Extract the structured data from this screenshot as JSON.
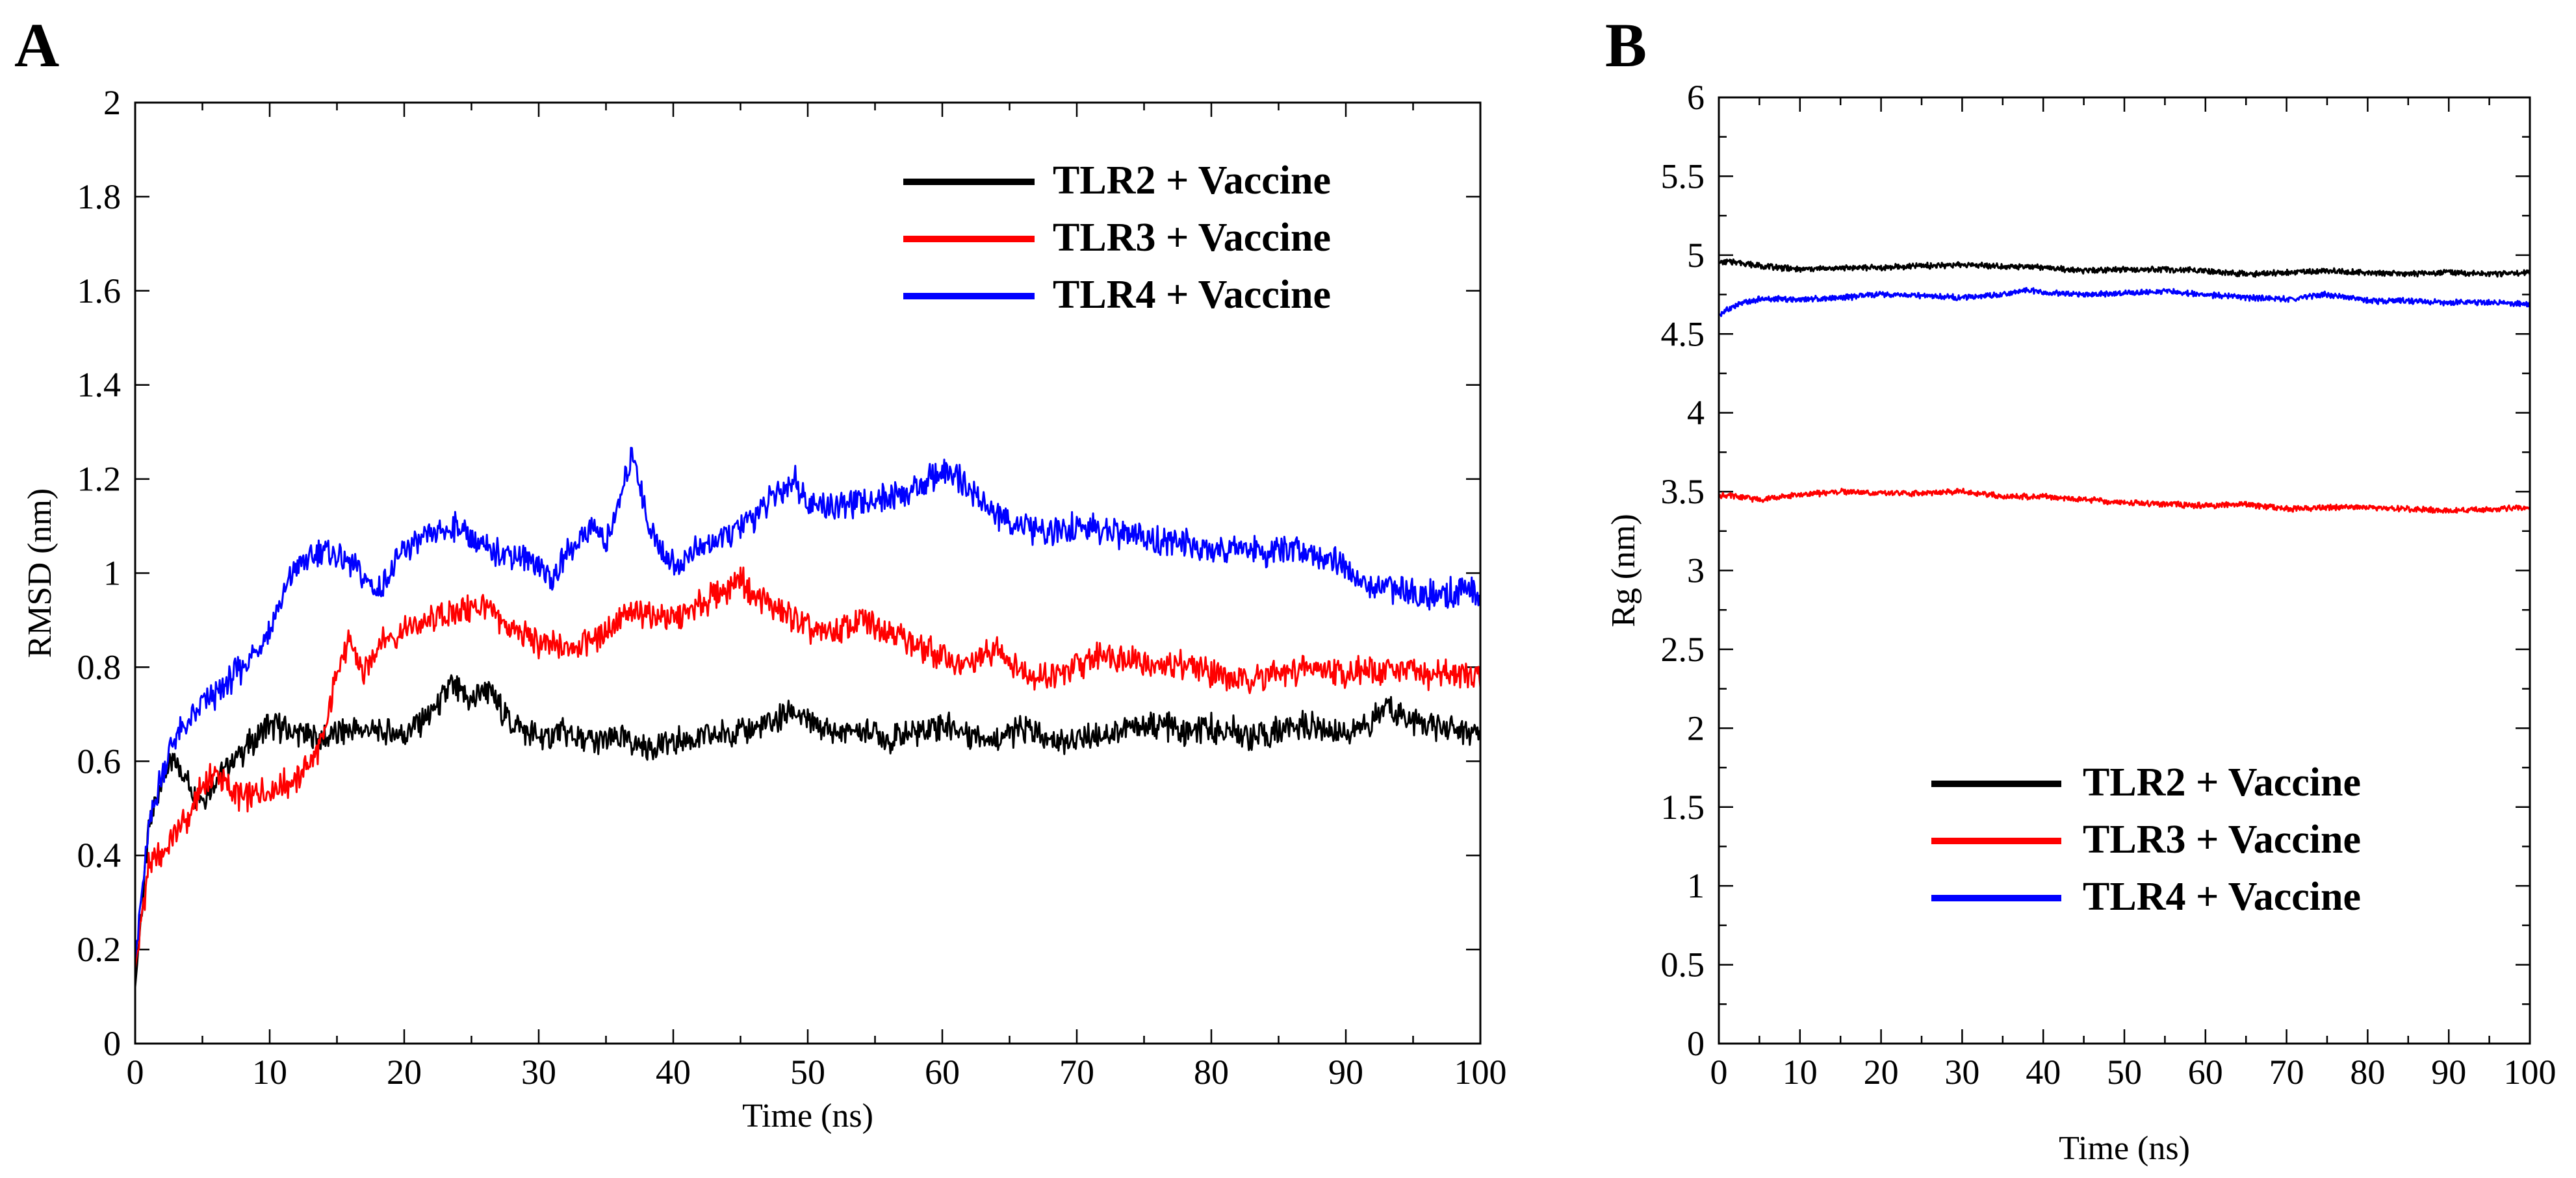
{
  "chart_data": [
    {
      "panel": "A",
      "type": "line",
      "title": "",
      "xlabel": "Time (ns)",
      "ylabel": "RMSD (nm)",
      "xlim": [
        0,
        100
      ],
      "ylim": [
        0,
        2
      ],
      "xticks": [
        0,
        10,
        20,
        30,
        40,
        50,
        60,
        70,
        80,
        90,
        100
      ],
      "yticks": [
        0,
        0.2,
        0.4,
        0.6,
        0.8,
        1,
        1.2,
        1.4,
        1.6,
        1.8,
        2
      ],
      "ytick_labels": [
        "0",
        "0.2",
        "0.4",
        "0.6",
        "0.8",
        "1",
        "1.2",
        "1.4",
        "1.6",
        "1.8",
        "2"
      ],
      "grid": false,
      "legend_position": "top-right",
      "series": [
        {
          "name": "TLR2 + Vaccine",
          "color": "#000000",
          "x": [
            0,
            1,
            2,
            3,
            4,
            5,
            6,
            8,
            10,
            12,
            14,
            16,
            18,
            20,
            22,
            23.5,
            25,
            26,
            28,
            30,
            32,
            34,
            36,
            38,
            40,
            42,
            44,
            46,
            48,
            49,
            50,
            52,
            54,
            56,
            58,
            60,
            62,
            64,
            66,
            68,
            70,
            72,
            74,
            76,
            78,
            80,
            82,
            84,
            86,
            88,
            90,
            92,
            93,
            94,
            96,
            98,
            100
          ],
          "y": [
            0.12,
            0.45,
            0.57,
            0.6,
            0.55,
            0.52,
            0.56,
            0.62,
            0.68,
            0.66,
            0.65,
            0.67,
            0.66,
            0.66,
            0.7,
            0.76,
            0.72,
            0.76,
            0.68,
            0.65,
            0.66,
            0.64,
            0.65,
            0.63,
            0.64,
            0.65,
            0.66,
            0.67,
            0.69,
            0.71,
            0.68,
            0.66,
            0.67,
            0.65,
            0.66,
            0.68,
            0.66,
            0.65,
            0.67,
            0.64,
            0.65,
            0.66,
            0.67,
            0.68,
            0.66,
            0.67,
            0.66,
            0.65,
            0.68,
            0.67,
            0.66,
            0.68,
            0.72,
            0.7,
            0.68,
            0.67,
            0.65
          ]
        },
        {
          "name": "TLR3 + Vaccine",
          "color": "#ff0000",
          "x": [
            0,
            1,
            2,
            3,
            4,
            5,
            6,
            8,
            10,
            12,
            14,
            15,
            16,
            17,
            18,
            20,
            22,
            24,
            26,
            28,
            30,
            32,
            34,
            36,
            38,
            40,
            42,
            44,
            45,
            46,
            48,
            50,
            52,
            54,
            56,
            58,
            60,
            62,
            64,
            66,
            68,
            70,
            72,
            74,
            76,
            78,
            80,
            82,
            84,
            86,
            88,
            90,
            92,
            94,
            96,
            98,
            100
          ],
          "y": [
            0.16,
            0.38,
            0.4,
            0.45,
            0.48,
            0.55,
            0.57,
            0.52,
            0.54,
            0.56,
            0.64,
            0.8,
            0.85,
            0.78,
            0.85,
            0.88,
            0.9,
            0.92,
            0.93,
            0.88,
            0.85,
            0.84,
            0.86,
            0.9,
            0.92,
            0.9,
            0.93,
            0.97,
            0.99,
            0.95,
            0.92,
            0.88,
            0.87,
            0.9,
            0.88,
            0.85,
            0.82,
            0.8,
            0.84,
            0.79,
            0.78,
            0.8,
            0.83,
            0.82,
            0.8,
            0.81,
            0.79,
            0.77,
            0.78,
            0.79,
            0.8,
            0.79,
            0.79,
            0.8,
            0.78,
            0.79,
            0.77
          ]
        },
        {
          "name": "TLR4 + Vaccine",
          "color": "#0000ff",
          "x": [
            0,
            1,
            2,
            3,
            4,
            5,
            6,
            8,
            10,
            11,
            12,
            13,
            14,
            16,
            18,
            19,
            20,
            22,
            24,
            26,
            28,
            30,
            31,
            32,
            34,
            35,
            36,
            37,
            38,
            39,
            40,
            42,
            44,
            46,
            48,
            49,
            50,
            52,
            54,
            56,
            58,
            60,
            62,
            64,
            66,
            68,
            70,
            72,
            74,
            76,
            78,
            80,
            82,
            84,
            86,
            88,
            90,
            91,
            92,
            94,
            96,
            98,
            100
          ],
          "y": [
            0.18,
            0.45,
            0.58,
            0.65,
            0.68,
            0.72,
            0.74,
            0.8,
            0.88,
            0.95,
            1.02,
            1.03,
            1.05,
            1.02,
            0.96,
            1.0,
            1.05,
            1.08,
            1.1,
            1.05,
            1.04,
            1.02,
            0.98,
            1.04,
            1.1,
            1.06,
            1.15,
            1.26,
            1.12,
            1.05,
            1.02,
            1.05,
            1.08,
            1.12,
            1.18,
            1.2,
            1.15,
            1.14,
            1.15,
            1.16,
            1.18,
            1.22,
            1.18,
            1.12,
            1.1,
            1.08,
            1.1,
            1.09,
            1.08,
            1.07,
            1.06,
            1.05,
            1.06,
            1.04,
            1.05,
            1.04,
            1.02,
            0.98,
            0.96,
            0.97,
            0.95,
            0.96,
            0.96
          ]
        }
      ]
    },
    {
      "panel": "B",
      "type": "line",
      "title": "",
      "xlabel": "Time (ns)",
      "ylabel": "Rg (nm)",
      "xlim": [
        0,
        100
      ],
      "ylim": [
        0,
        6
      ],
      "xticks": [
        0,
        10,
        20,
        30,
        40,
        50,
        60,
        70,
        80,
        90,
        100
      ],
      "yticks": [
        0,
        0.5,
        1,
        1.5,
        2,
        2.5,
        3,
        3.5,
        4,
        4.5,
        5,
        5.5,
        6
      ],
      "ytick_labels": [
        "0",
        "0.5",
        "1",
        "1.5",
        "2",
        "2.5",
        "3",
        "3.5",
        "4",
        "4.5",
        "5",
        "5.5",
        "6"
      ],
      "grid": false,
      "legend_position": "bottom-right",
      "series": [
        {
          "name": "TLR2 + Vaccine",
          "color": "#000000",
          "x": [
            0,
            2,
            5,
            10,
            15,
            20,
            25,
            30,
            35,
            40,
            45,
            50,
            55,
            60,
            65,
            70,
            75,
            80,
            85,
            90,
            95,
            100
          ],
          "y": [
            4.95,
            4.96,
            4.93,
            4.91,
            4.92,
            4.92,
            4.93,
            4.94,
            4.93,
            4.92,
            4.9,
            4.91,
            4.91,
            4.9,
            4.88,
            4.89,
            4.9,
            4.89,
            4.88,
            4.89,
            4.88,
            4.89
          ]
        },
        {
          "name": "TLR3 + Vaccine",
          "color": "#ff0000",
          "x": [
            0,
            2,
            5,
            10,
            15,
            20,
            25,
            30,
            35,
            40,
            45,
            50,
            55,
            60,
            65,
            70,
            75,
            80,
            85,
            90,
            95,
            100
          ],
          "y": [
            3.48,
            3.47,
            3.45,
            3.48,
            3.5,
            3.49,
            3.49,
            3.5,
            3.47,
            3.47,
            3.45,
            3.43,
            3.42,
            3.41,
            3.42,
            3.39,
            3.4,
            3.4,
            3.39,
            3.38,
            3.39,
            3.4
          ]
        },
        {
          "name": "TLR4 + Vaccine",
          "color": "#0000ff",
          "x": [
            0,
            2,
            5,
            10,
            15,
            20,
            25,
            30,
            35,
            38,
            40,
            45,
            50,
            55,
            60,
            65,
            70,
            75,
            80,
            85,
            90,
            95,
            100
          ],
          "y": [
            4.62,
            4.68,
            4.72,
            4.72,
            4.73,
            4.75,
            4.74,
            4.73,
            4.75,
            4.78,
            4.76,
            4.75,
            4.76,
            4.77,
            4.75,
            4.73,
            4.72,
            4.75,
            4.71,
            4.71,
            4.7,
            4.7,
            4.69
          ]
        }
      ]
    }
  ]
}
